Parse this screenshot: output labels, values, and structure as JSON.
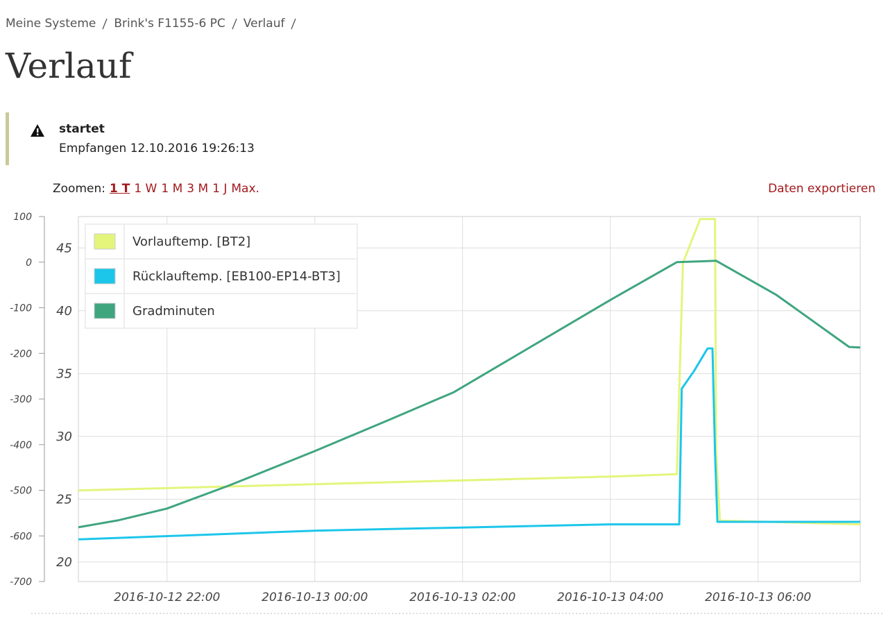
{
  "breadcrumb": [
    "Meine Systeme",
    "Brink's F1155-6 PC",
    "Verlauf"
  ],
  "title": "Verlauf",
  "alert": {
    "heading": "startet",
    "text": "Empfangen 12.10.2016 19:26:13"
  },
  "zoom": {
    "label": "Zoomen:",
    "options": [
      "1 T",
      "1 W",
      "1 M",
      "3 M",
      "1 J",
      "Max."
    ]
  },
  "export": "Daten exportieren",
  "chart_data": {
    "type": "line",
    "xlim": [
      "2016-10-12 20:48",
      "2016-10-13 07:23"
    ],
    "xticks": [
      "2016-10-12 22:00",
      "2016-10-13 00:00",
      "2016-10-13 02:00",
      "2016-10-13 04:00",
      "2016-10-13 06:00"
    ],
    "ylim": [
      -700,
      100
    ],
    "yticks": [
      100,
      0,
      -100,
      -200,
      -300,
      -400,
      -500,
      -600,
      -700
    ],
    "y2lim": [
      18.45,
      47.5
    ],
    "y2ticks": [
      20,
      25,
      30,
      35,
      40,
      45
    ],
    "grid": true,
    "legend": "upper left",
    "series": [
      {
        "name": "Vorlauftemp. [BT2]",
        "color": "#e4f57c",
        "axis": "y2",
        "x": [
          "2016-10-12 20:48",
          "2016-10-13 00:00",
          "2016-10-13 04:00",
          "2016-10-13 04:54",
          "2016-10-13 04:59",
          "2016-10-13 05:13",
          "2016-10-13 05:25",
          "2016-10-13 05:26",
          "2016-10-13 05:29",
          "2016-10-13 07:23"
        ],
        "values": [
          25.7,
          26.2,
          26.8,
          27.0,
          43.8,
          47.3,
          47.3,
          28.8,
          23.3,
          23.0
        ]
      },
      {
        "name": "Rücklauftemp. [EB100-EP14-BT3]",
        "color": "#1cc6ea",
        "axis": "y2",
        "x": [
          "2016-10-12 20:48",
          "2016-10-13 00:00",
          "2016-10-13 04:00",
          "2016-10-13 04:56",
          "2016-10-13 04:58",
          "2016-10-13 05:08",
          "2016-10-13 05:19",
          "2016-10-13 05:23",
          "2016-10-13 05:25",
          "2016-10-13 05:27",
          "2016-10-13 07:23"
        ],
        "values": [
          21.8,
          22.5,
          23.0,
          23.0,
          33.8,
          35.2,
          37.0,
          37.0,
          28.8,
          23.2,
          23.2
        ]
      },
      {
        "name": "Gradminuten",
        "color": "#3fa57f",
        "x": [
          "2016-10-12 20:48",
          "2016-10-12 21:20",
          "2016-10-12 22:00",
          "2016-10-12 22:50",
          "2016-10-13 00:00",
          "2016-10-13 01:00",
          "2016-10-13 01:53",
          "2016-10-13 04:00",
          "2016-10-13 04:54",
          "2016-10-13 05:26",
          "2016-10-13 06:15",
          "2016-10-13 07:14",
          "2016-10-13 07:23"
        ],
        "values": [
          -581,
          -566,
          -540,
          -490,
          -414,
          -346,
          -285,
          -83,
          0,
          3,
          -72,
          -186,
          -187
        ]
      }
    ]
  }
}
